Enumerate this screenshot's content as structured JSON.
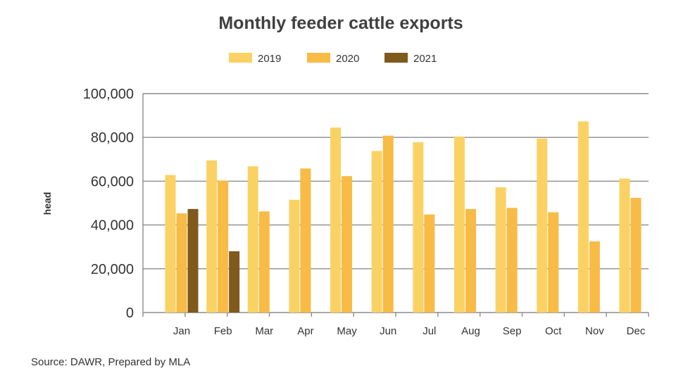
{
  "chart_data": {
    "type": "bar",
    "title": "Monthly feeder cattle exports",
    "ylabel": "head",
    "xlabel": "",
    "source": "Source: DAWR, Prepared by MLA",
    "ylim": [
      0,
      100000
    ],
    "yticks": [
      0,
      20000,
      40000,
      60000,
      80000,
      100000
    ],
    "ytick_labels": [
      "0",
      "20,000",
      "40,000",
      "60,000",
      "80,000",
      "100,000"
    ],
    "grid": true,
    "legend_position": "top-center",
    "categories": [
      "Jan",
      "Feb",
      "Mar",
      "Apr",
      "May",
      "Jun",
      "Jul",
      "Aug",
      "Sep",
      "Oct",
      "Nov",
      "Dec"
    ],
    "series": [
      {
        "name": "2019",
        "color": "#FAD264",
        "values": [
          62800,
          69500,
          66800,
          51500,
          84500,
          73800,
          77800,
          80400,
          57200,
          79500,
          87300,
          61200
        ]
      },
      {
        "name": "2020",
        "color": "#F7BB46",
        "values": [
          45300,
          60300,
          46200,
          65800,
          62300,
          80800,
          44800,
          47300,
          47800,
          45800,
          32500,
          52400
        ]
      },
      {
        "name": "2021",
        "color": "#7F5A1C",
        "values": [
          47300,
          28000,
          null,
          null,
          null,
          null,
          null,
          null,
          null,
          null,
          null,
          null
        ]
      }
    ]
  }
}
